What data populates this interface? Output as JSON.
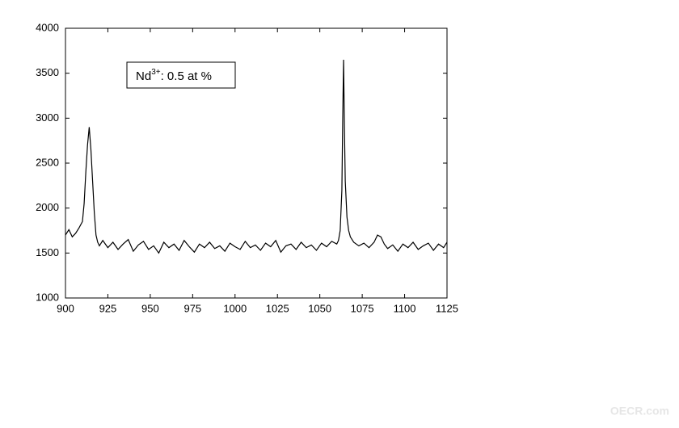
{
  "chart_data": {
    "type": "line",
    "annotation": {
      "text": "Nd",
      "sup": "3+",
      "rest": ": 0.5 at %"
    },
    "watermark": "OECR.com",
    "color": "#000000",
    "x": [
      900,
      902,
      904,
      906,
      908,
      910,
      911,
      912,
      913,
      914,
      915,
      916,
      917,
      918,
      919,
      920,
      922,
      925,
      928,
      931,
      934,
      937,
      940,
      943,
      946,
      949,
      952,
      955,
      958,
      961,
      964,
      967,
      970,
      973,
      976,
      979,
      982,
      985,
      988,
      991,
      994,
      997,
      1000,
      1003,
      1006,
      1009,
      1012,
      1015,
      1018,
      1021,
      1024,
      1027,
      1030,
      1033,
      1036,
      1039,
      1042,
      1045,
      1048,
      1051,
      1054,
      1057,
      1060,
      1061,
      1062,
      1063,
      1063.5,
      1064,
      1064.5,
      1065,
      1066,
      1067,
      1068,
      1070,
      1073,
      1076,
      1079,
      1082,
      1084,
      1086,
      1088,
      1090,
      1093,
      1096,
      1099,
      1102,
      1105,
      1108,
      1111,
      1114,
      1117,
      1120,
      1123,
      1125
    ],
    "values": [
      1700,
      1760,
      1680,
      1720,
      1780,
      1850,
      2050,
      2400,
      2700,
      2900,
      2650,
      2300,
      1950,
      1700,
      1620,
      1580,
      1640,
      1560,
      1620,
      1540,
      1600,
      1650,
      1520,
      1590,
      1630,
      1540,
      1580,
      1500,
      1620,
      1560,
      1600,
      1530,
      1640,
      1570,
      1510,
      1600,
      1560,
      1620,
      1550,
      1580,
      1520,
      1610,
      1570,
      1540,
      1630,
      1560,
      1590,
      1530,
      1610,
      1570,
      1640,
      1510,
      1580,
      1600,
      1540,
      1620,
      1560,
      1590,
      1530,
      1610,
      1570,
      1630,
      1600,
      1640,
      1750,
      2200,
      3000,
      3650,
      2900,
      2300,
      1900,
      1750,
      1680,
      1620,
      1580,
      1610,
      1560,
      1620,
      1700,
      1680,
      1600,
      1550,
      1590,
      1520,
      1600,
      1560,
      1620,
      1540,
      1580,
      1610,
      1530,
      1600,
      1560,
      1620
    ],
    "xlim": [
      900,
      1125
    ],
    "xticks": [
      900,
      925,
      950,
      975,
      1000,
      1025,
      1050,
      1075,
      1100,
      1125
    ],
    "ylim": [
      1000,
      4000
    ],
    "yticks": [
      1000,
      1500,
      2000,
      2500,
      3000,
      3500,
      4000
    ]
  }
}
